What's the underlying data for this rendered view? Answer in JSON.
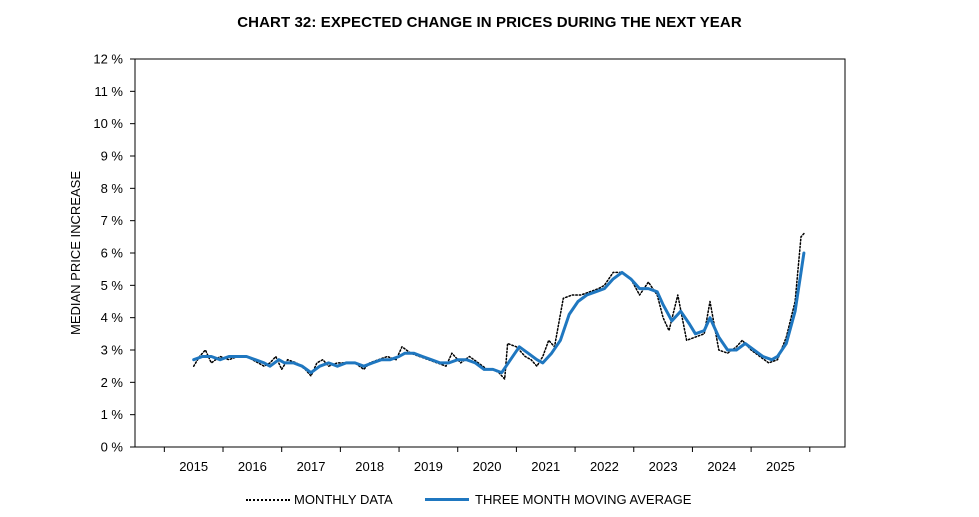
{
  "chart_data": {
    "type": "line",
    "title": "CHART 32: EXPECTED CHANGE IN PRICES DURING THE NEXT YEAR",
    "ylabel": "MEDIAN PRICE INCREASE",
    "xlabel": "",
    "ylim": [
      0,
      12
    ],
    "yticks": [
      "0 %",
      "1 %",
      "2 %",
      "3 %",
      "4 %",
      "5 %",
      "6 %",
      "7 %",
      "8 %",
      "9 %",
      "10 %",
      "11 %",
      "12 %"
    ],
    "xlim": [
      2014,
      2026.1
    ],
    "xticks": [
      "2015",
      "2016",
      "2017",
      "2018",
      "2019",
      "2020",
      "2021",
      "2022",
      "2023",
      "2024",
      "2025"
    ],
    "legend_position": "bottom",
    "grid": false,
    "series": [
      {
        "name": "MONTHLY DATA",
        "style": "dotted",
        "color": "#000000",
        "points": [
          [
            2015.0,
            2.5
          ],
          [
            2015.1,
            2.8
          ],
          [
            2015.2,
            3.0
          ],
          [
            2015.3,
            2.6
          ],
          [
            2015.45,
            2.8
          ],
          [
            2015.6,
            2.7
          ],
          [
            2015.75,
            2.8
          ],
          [
            2015.9,
            2.8
          ],
          [
            2016.0,
            2.7
          ],
          [
            2016.1,
            2.6
          ],
          [
            2016.2,
            2.5
          ],
          [
            2016.3,
            2.6
          ],
          [
            2016.4,
            2.8
          ],
          [
            2016.5,
            2.4
          ],
          [
            2016.6,
            2.7
          ],
          [
            2016.75,
            2.6
          ],
          [
            2016.9,
            2.4
          ],
          [
            2017.0,
            2.2
          ],
          [
            2017.1,
            2.6
          ],
          [
            2017.2,
            2.7
          ],
          [
            2017.3,
            2.5
          ],
          [
            2017.45,
            2.6
          ],
          [
            2017.6,
            2.6
          ],
          [
            2017.75,
            2.6
          ],
          [
            2017.9,
            2.4
          ],
          [
            2018.0,
            2.6
          ],
          [
            2018.15,
            2.7
          ],
          [
            2018.3,
            2.8
          ],
          [
            2018.45,
            2.7
          ],
          [
            2018.55,
            3.1
          ],
          [
            2018.7,
            2.9
          ],
          [
            2018.85,
            2.8
          ],
          [
            2019.0,
            2.7
          ],
          [
            2019.15,
            2.6
          ],
          [
            2019.3,
            2.5
          ],
          [
            2019.4,
            2.9
          ],
          [
            2019.55,
            2.6
          ],
          [
            2019.7,
            2.8
          ],
          [
            2019.85,
            2.6
          ],
          [
            2020.0,
            2.4
          ],
          [
            2020.1,
            2.4
          ],
          [
            2020.2,
            2.3
          ],
          [
            2020.3,
            2.1
          ],
          [
            2020.35,
            3.2
          ],
          [
            2020.5,
            3.1
          ],
          [
            2020.65,
            2.8
          ],
          [
            2020.75,
            2.7
          ],
          [
            2020.85,
            2.5
          ],
          [
            2020.95,
            2.8
          ],
          [
            2021.05,
            3.3
          ],
          [
            2021.15,
            3.1
          ],
          [
            2021.3,
            4.6
          ],
          [
            2021.45,
            4.7
          ],
          [
            2021.6,
            4.7
          ],
          [
            2021.75,
            4.8
          ],
          [
            2021.9,
            4.9
          ],
          [
            2022.0,
            5.0
          ],
          [
            2022.15,
            5.4
          ],
          [
            2022.3,
            5.4
          ],
          [
            2022.45,
            5.2
          ],
          [
            2022.6,
            4.7
          ],
          [
            2022.75,
            5.1
          ],
          [
            2022.9,
            4.7
          ],
          [
            2023.0,
            4.0
          ],
          [
            2023.1,
            3.6
          ],
          [
            2023.25,
            4.7
          ],
          [
            2023.4,
            3.3
          ],
          [
            2023.55,
            3.4
          ],
          [
            2023.7,
            3.5
          ],
          [
            2023.8,
            4.5
          ],
          [
            2023.95,
            3.0
          ],
          [
            2024.1,
            2.9
          ],
          [
            2024.25,
            3.1
          ],
          [
            2024.35,
            3.3
          ],
          [
            2024.5,
            3.0
          ],
          [
            2024.65,
            2.8
          ],
          [
            2024.8,
            2.6
          ],
          [
            2024.95,
            2.7
          ],
          [
            2025.1,
            3.4
          ],
          [
            2025.25,
            4.5
          ],
          [
            2025.35,
            6.5
          ],
          [
            2025.4,
            6.6
          ]
        ]
      },
      {
        "name": "THREE MONTH MOVING AVERAGE",
        "style": "solid",
        "color": "#1f77c0",
        "points": [
          [
            2015.0,
            2.7
          ],
          [
            2015.15,
            2.8
          ],
          [
            2015.3,
            2.8
          ],
          [
            2015.45,
            2.7
          ],
          [
            2015.6,
            2.8
          ],
          [
            2015.75,
            2.8
          ],
          [
            2015.9,
            2.8
          ],
          [
            2016.05,
            2.7
          ],
          [
            2016.2,
            2.6
          ],
          [
            2016.3,
            2.5
          ],
          [
            2016.45,
            2.7
          ],
          [
            2016.55,
            2.6
          ],
          [
            2016.7,
            2.6
          ],
          [
            2016.85,
            2.5
          ],
          [
            2017.0,
            2.3
          ],
          [
            2017.15,
            2.5
          ],
          [
            2017.3,
            2.6
          ],
          [
            2017.45,
            2.5
          ],
          [
            2017.6,
            2.6
          ],
          [
            2017.75,
            2.6
          ],
          [
            2017.9,
            2.5
          ],
          [
            2018.05,
            2.6
          ],
          [
            2018.2,
            2.7
          ],
          [
            2018.35,
            2.7
          ],
          [
            2018.5,
            2.8
          ],
          [
            2018.6,
            2.9
          ],
          [
            2018.75,
            2.9
          ],
          [
            2018.9,
            2.8
          ],
          [
            2019.05,
            2.7
          ],
          [
            2019.2,
            2.6
          ],
          [
            2019.35,
            2.6
          ],
          [
            2019.5,
            2.7
          ],
          [
            2019.65,
            2.7
          ],
          [
            2019.8,
            2.6
          ],
          [
            2019.95,
            2.4
          ],
          [
            2020.1,
            2.4
          ],
          [
            2020.25,
            2.3
          ],
          [
            2020.4,
            2.7
          ],
          [
            2020.55,
            3.1
          ],
          [
            2020.7,
            2.9
          ],
          [
            2020.85,
            2.7
          ],
          [
            2020.95,
            2.6
          ],
          [
            2021.1,
            2.9
          ],
          [
            2021.25,
            3.3
          ],
          [
            2021.4,
            4.1
          ],
          [
            2021.55,
            4.5
          ],
          [
            2021.7,
            4.7
          ],
          [
            2021.85,
            4.8
          ],
          [
            2022.0,
            4.9
          ],
          [
            2022.15,
            5.2
          ],
          [
            2022.3,
            5.4
          ],
          [
            2022.45,
            5.2
          ],
          [
            2022.6,
            4.9
          ],
          [
            2022.75,
            4.9
          ],
          [
            2022.9,
            4.8
          ],
          [
            2023.0,
            4.4
          ],
          [
            2023.15,
            3.9
          ],
          [
            2023.3,
            4.2
          ],
          [
            2023.45,
            3.8
          ],
          [
            2023.55,
            3.5
          ],
          [
            2023.7,
            3.6
          ],
          [
            2023.8,
            4.0
          ],
          [
            2023.95,
            3.4
          ],
          [
            2024.1,
            3.0
          ],
          [
            2024.25,
            3.0
          ],
          [
            2024.4,
            3.2
          ],
          [
            2024.55,
            3.0
          ],
          [
            2024.7,
            2.8
          ],
          [
            2024.85,
            2.7
          ],
          [
            2024.95,
            2.8
          ],
          [
            2025.1,
            3.2
          ],
          [
            2025.25,
            4.2
          ],
          [
            2025.35,
            5.4
          ],
          [
            2025.4,
            6.0
          ]
        ]
      }
    ]
  }
}
